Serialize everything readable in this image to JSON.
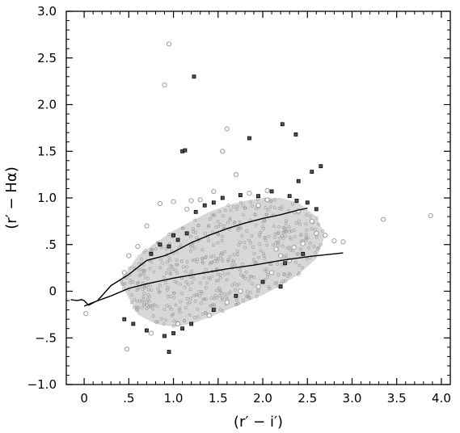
{
  "chart_data": {
    "type": "scatter",
    "title": "",
    "xlabel": "(r′ − i′)",
    "ylabel": "(r′ − Hα)",
    "xlim": [
      -0.2,
      4.1
    ],
    "ylim": [
      -1.0,
      3.0
    ],
    "x_ticks": [
      0.0,
      0.5,
      1.0,
      1.5,
      2.0,
      2.5,
      3.0,
      3.5,
      4.0
    ],
    "x_tick_labels": [
      "0",
      ".5",
      "1.0",
      "1.5",
      "2.0",
      "2.5",
      "3.0",
      "3.5",
      "4.0"
    ],
    "y_ticks": [
      -1.0,
      -0.5,
      0.0,
      0.5,
      1.0,
      1.5,
      2.0,
      2.5,
      3.0
    ],
    "y_tick_labels": [
      "−1.0",
      "−.5",
      "0",
      ".5",
      "1.0",
      "1.5",
      "2.0",
      "2.5",
      "3.0"
    ],
    "grid": false,
    "legend": "none",
    "series": [
      {
        "type": "line",
        "values": [
          [
            -0.15,
            -0.09
          ],
          [
            -0.08,
            -0.1
          ],
          [
            -0.03,
            -0.09
          ],
          [
            0.0,
            -0.1
          ],
          [
            0.05,
            -0.15
          ],
          [
            0.15,
            -0.1
          ],
          [
            0.3,
            0.06
          ],
          [
            0.4,
            0.12
          ],
          [
            0.5,
            0.18
          ],
          [
            0.7,
            0.33
          ],
          [
            0.9,
            0.38
          ],
          [
            1.0,
            0.42
          ],
          [
            1.2,
            0.52
          ],
          [
            1.4,
            0.6
          ],
          [
            1.6,
            0.67
          ],
          [
            1.8,
            0.73
          ],
          [
            2.0,
            0.78
          ],
          [
            2.2,
            0.82
          ],
          [
            2.4,
            0.87
          ],
          [
            2.5,
            0.89
          ]
        ]
      },
      {
        "type": "line",
        "values": [
          [
            0.0,
            -0.16
          ],
          [
            0.1,
            -0.12
          ],
          [
            0.3,
            -0.05
          ],
          [
            0.5,
            0.03
          ],
          [
            0.7,
            0.08
          ],
          [
            1.0,
            0.14
          ],
          [
            1.3,
            0.19
          ],
          [
            1.6,
            0.24
          ],
          [
            1.9,
            0.28
          ],
          [
            2.2,
            0.33
          ],
          [
            2.5,
            0.37
          ],
          [
            2.9,
            0.41
          ]
        ]
      },
      {
        "type": "scatter",
        "marker": "open-circle-light",
        "points": [
          [
            0.95,
            2.65
          ],
          [
            0.9,
            2.21
          ],
          [
            1.6,
            1.74
          ],
          [
            1.55,
            1.5
          ],
          [
            1.7,
            1.25
          ],
          [
            1.85,
            1.05
          ],
          [
            2.05,
            1.08
          ],
          [
            3.35,
            0.77
          ],
          [
            3.88,
            0.81
          ],
          [
            2.8,
            0.54
          ],
          [
            2.9,
            0.53
          ],
          [
            2.6,
            0.62
          ],
          [
            2.7,
            0.6
          ],
          [
            2.45,
            0.51
          ],
          [
            2.35,
            0.47
          ],
          [
            2.2,
            0.38
          ],
          [
            2.3,
            0.33
          ],
          [
            0.48,
            -0.62
          ],
          [
            0.02,
            -0.24
          ],
          [
            1.2,
            0.97
          ],
          [
            1.0,
            0.96
          ],
          [
            0.85,
            0.94
          ],
          [
            1.45,
            1.07
          ],
          [
            1.3,
            0.98
          ],
          [
            0.6,
            0.48
          ],
          [
            0.5,
            0.38
          ],
          [
            0.45,
            0.2
          ],
          [
            0.7,
            0.7
          ],
          [
            0.75,
            -0.45
          ],
          [
            1.05,
            -0.35
          ],
          [
            1.4,
            -0.26
          ],
          [
            1.6,
            -0.12
          ],
          [
            1.75,
            0.0
          ],
          [
            1.95,
            0.05
          ],
          [
            2.1,
            0.2
          ],
          [
            2.15,
            0.45
          ],
          [
            2.4,
            0.86
          ],
          [
            2.55,
            0.75
          ],
          [
            1.15,
            0.88
          ],
          [
            1.95,
            0.92
          ],
          [
            2.05,
            0.98
          ]
        ]
      },
      {
        "type": "scatter",
        "marker": "square-dark",
        "points": [
          [
            1.23,
            2.3
          ],
          [
            1.1,
            1.5
          ],
          [
            1.13,
            1.51
          ],
          [
            1.85,
            1.64
          ],
          [
            2.22,
            1.79
          ],
          [
            2.37,
            1.68
          ],
          [
            2.65,
            1.34
          ],
          [
            2.55,
            1.28
          ],
          [
            2.4,
            1.18
          ],
          [
            2.1,
            1.07
          ],
          [
            2.3,
            1.02
          ],
          [
            2.5,
            0.95
          ],
          [
            2.6,
            0.88
          ],
          [
            2.38,
            0.97
          ],
          [
            1.55,
            1.0
          ],
          [
            1.75,
            1.03
          ],
          [
            1.95,
            1.02
          ],
          [
            1.45,
            0.95
          ],
          [
            1.35,
            0.92
          ],
          [
            1.25,
            0.85
          ],
          [
            0.95,
            -0.65
          ],
          [
            0.9,
            -0.48
          ],
          [
            1.0,
            -0.45
          ],
          [
            1.1,
            -0.4
          ],
          [
            0.7,
            -0.42
          ],
          [
            0.55,
            -0.35
          ],
          [
            0.45,
            -0.3
          ],
          [
            1.2,
            -0.35
          ],
          [
            1.45,
            -0.2
          ],
          [
            1.7,
            -0.05
          ],
          [
            2.0,
            0.1
          ],
          [
            2.2,
            0.05
          ],
          [
            2.45,
            0.4
          ],
          [
            2.25,
            0.3
          ],
          [
            1.05,
            0.55
          ],
          [
            0.85,
            0.5
          ],
          [
            0.95,
            0.48
          ],
          [
            0.75,
            0.4
          ],
          [
            1.15,
            0.62
          ],
          [
            1.0,
            0.6
          ]
        ]
      }
    ],
    "density_cloud": {
      "note": "dense overlapping points forming a band",
      "upper_edge": [
        [
          0.4,
          0.1
        ],
        [
          0.6,
          0.38
        ],
        [
          0.8,
          0.52
        ],
        [
          1.0,
          0.65
        ],
        [
          1.2,
          0.75
        ],
        [
          1.4,
          0.85
        ],
        [
          1.6,
          0.92
        ],
        [
          1.8,
          0.97
        ],
        [
          2.0,
          1.0
        ],
        [
          2.2,
          1.0
        ],
        [
          2.4,
          0.95
        ],
        [
          2.6,
          0.8
        ],
        [
          2.7,
          0.6
        ]
      ],
      "lower_edge": [
        [
          2.7,
          0.6
        ],
        [
          2.6,
          0.35
        ],
        [
          2.4,
          0.18
        ],
        [
          2.2,
          0.06
        ],
        [
          2.0,
          -0.04
        ],
        [
          1.8,
          -0.12
        ],
        [
          1.6,
          -0.2
        ],
        [
          1.4,
          -0.28
        ],
        [
          1.2,
          -0.35
        ],
        [
          1.0,
          -0.38
        ],
        [
          0.8,
          -0.35
        ],
        [
          0.6,
          -0.25
        ],
        [
          0.4,
          0.1
        ]
      ]
    }
  }
}
